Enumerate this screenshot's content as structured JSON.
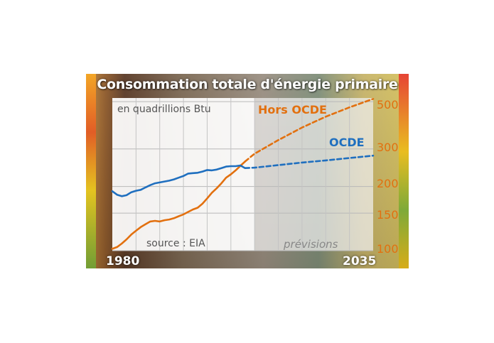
{
  "chart_data": {
    "type": "line",
    "title": "Consommation totale d'énergie primaire",
    "unit_label": "en quadrillions Btu",
    "source": "source : EIA",
    "forecast_label": "prévisions",
    "x_start_label": "1980",
    "x_end_label": "2035",
    "xlim": [
      1980,
      2035
    ],
    "ylim": [
      100,
      520
    ],
    "y_scale": "log",
    "y_ticks": [
      "500",
      "300",
      "200",
      "150",
      "100"
    ],
    "y_tick_values": [
      500,
      300,
      200,
      150,
      100
    ],
    "y_tick_colors": [
      "#e2700f",
      "#e2700f",
      "#e2700f",
      "#e2700f",
      "#e2700f"
    ],
    "grid": true,
    "forecast_start": 2008,
    "series": [
      {
        "name": "Hors OCDE",
        "color": "#e2700f",
        "points": [
          [
            1980,
            102
          ],
          [
            1981,
            104
          ],
          [
            1982,
            108
          ],
          [
            1983,
            113
          ],
          [
            1984,
            119
          ],
          [
            1985,
            124
          ],
          [
            1986,
            129
          ],
          [
            1987,
            133
          ],
          [
            1988,
            137
          ],
          [
            1989,
            138
          ],
          [
            1990,
            137
          ],
          [
            1991,
            139
          ],
          [
            1992,
            140
          ],
          [
            1993,
            142
          ],
          [
            1994,
            145
          ],
          [
            1995,
            148
          ],
          [
            1996,
            152
          ],
          [
            1997,
            156
          ],
          [
            1998,
            159
          ],
          [
            1999,
            166
          ],
          [
            2000,
            176
          ],
          [
            2001,
            187
          ],
          [
            2002,
            196
          ],
          [
            2003,
            207
          ],
          [
            2004,
            220
          ],
          [
            2005,
            228
          ],
          [
            2006,
            238
          ],
          [
            2007,
            250
          ],
          [
            2008,
            262
          ],
          [
            2010,
            285
          ],
          [
            2015,
            330
          ],
          [
            2020,
            378
          ],
          [
            2025,
            425
          ],
          [
            2030,
            470
          ],
          [
            2035,
            515
          ]
        ]
      },
      {
        "name": "OCDE",
        "color": "#1f6fbf",
        "points": [
          [
            1980,
            190
          ],
          [
            1981,
            183
          ],
          [
            1982,
            180
          ],
          [
            1983,
            182
          ],
          [
            1984,
            188
          ],
          [
            1985,
            191
          ],
          [
            1986,
            193
          ],
          [
            1987,
            198
          ],
          [
            1988,
            203
          ],
          [
            1989,
            207
          ],
          [
            1990,
            209
          ],
          [
            1991,
            211
          ],
          [
            1992,
            213
          ],
          [
            1993,
            216
          ],
          [
            1994,
            220
          ],
          [
            1995,
            224
          ],
          [
            1996,
            230
          ],
          [
            1997,
            231
          ],
          [
            1998,
            232
          ],
          [
            1999,
            235
          ],
          [
            2000,
            239
          ],
          [
            2001,
            238
          ],
          [
            2002,
            240
          ],
          [
            2003,
            244
          ],
          [
            2004,
            248
          ],
          [
            2005,
            249
          ],
          [
            2006,
            249
          ],
          [
            2007,
            251
          ],
          [
            2008,
            244
          ],
          [
            2010,
            245
          ],
          [
            2015,
            252
          ],
          [
            2020,
            259
          ],
          [
            2025,
            265
          ],
          [
            2030,
            272
          ],
          [
            2035,
            279
          ]
        ]
      }
    ]
  },
  "colors": {
    "non_oecd": "#e2700f",
    "oecd": "#1f6fbf",
    "title_text": "#ffffff"
  }
}
